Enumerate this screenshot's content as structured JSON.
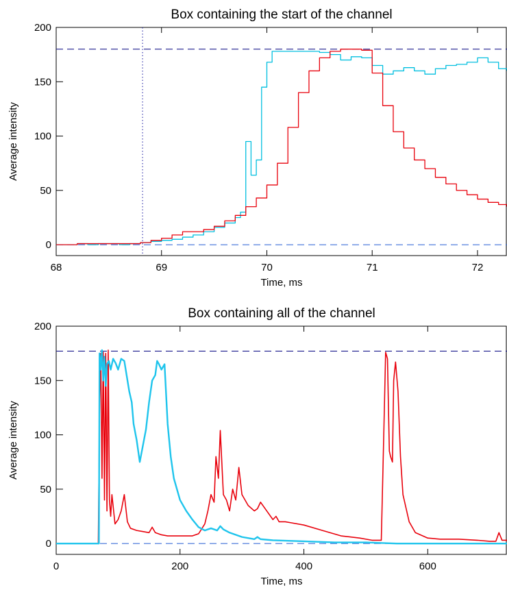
{
  "chart_data": [
    {
      "type": "line",
      "title": "Box containing the start of the channel",
      "xlabel": "Time, ms",
      "ylabel": "Average intensity",
      "xlim": [
        68,
        72.28
      ],
      "ylim": [
        -10,
        200
      ],
      "xticks": [
        68,
        69,
        70,
        71,
        72
      ],
      "xtick_labels": [
        "68",
        "69",
        "70",
        "71",
        "72"
      ],
      "yticks": [
        0,
        50,
        100,
        150,
        200
      ],
      "ytick_labels": [
        "0",
        "50",
        "100",
        "150",
        "200"
      ],
      "step": true,
      "reference_lines": [
        {
          "name": "saturation-line",
          "orientation": "h",
          "value": 180,
          "color": "#1a1a8c",
          "style": "dashed"
        },
        {
          "name": "zero-line",
          "orientation": "h",
          "value": 0,
          "color": "#3b6fd9",
          "style": "dashed"
        },
        {
          "name": "onset-line",
          "orientation": "v",
          "value": 68.82,
          "color": "#2a2aa8",
          "style": "dotted"
        }
      ],
      "series": [
        {
          "color": "#00bfdf",
          "x": [
            68.0,
            68.1,
            68.2,
            68.3,
            68.4,
            68.5,
            68.6,
            68.7,
            68.8,
            68.9,
            69.0,
            69.1,
            69.2,
            69.3,
            69.4,
            69.5,
            69.6,
            69.7,
            69.75,
            69.8,
            69.85,
            69.9,
            69.95,
            70.0,
            70.05,
            70.1,
            70.3,
            70.5,
            70.6,
            70.7,
            70.8,
            70.9,
            71.0,
            71.1,
            71.2,
            71.3,
            71.4,
            71.5,
            71.6,
            71.7,
            71.8,
            71.9,
            72.0,
            72.1,
            72.2,
            72.28
          ],
          "y": [
            0,
            0,
            1,
            0,
            1,
            1,
            0,
            1,
            2,
            3,
            4,
            5,
            7,
            9,
            12,
            16,
            20,
            25,
            30,
            95,
            64,
            78,
            145,
            168,
            178,
            178,
            178,
            177,
            175,
            170,
            173,
            172,
            165,
            157,
            160,
            163,
            160,
            157,
            162,
            165,
            166,
            168,
            172,
            168,
            162,
            160
          ]
        },
        {
          "color": "#e8000b",
          "x": [
            68.0,
            68.2,
            68.4,
            68.6,
            68.8,
            68.9,
            69.0,
            69.1,
            69.2,
            69.3,
            69.4,
            69.5,
            69.6,
            69.7,
            69.8,
            69.9,
            70.0,
            70.1,
            70.2,
            70.3,
            70.4,
            70.5,
            70.6,
            70.7,
            70.8,
            70.9,
            71.0,
            71.1,
            71.2,
            71.3,
            71.4,
            71.5,
            71.6,
            71.7,
            71.8,
            71.9,
            72.0,
            72.1,
            72.2,
            72.28
          ],
          "y": [
            0,
            1,
            1,
            1,
            2,
            4,
            6,
            9,
            12,
            12,
            14,
            17,
            22,
            27,
            35,
            43,
            55,
            75,
            108,
            140,
            160,
            172,
            178,
            180,
            180,
            179,
            158,
            128,
            104,
            89,
            78,
            70,
            62,
            56,
            50,
            46,
            42,
            39,
            37,
            35
          ]
        }
      ]
    },
    {
      "type": "line",
      "title": "Box containing all of the channel",
      "xlabel": "Time, ms",
      "ylabel": "Average intensity",
      "xlim": [
        0,
        728
      ],
      "ylim": [
        -10,
        200
      ],
      "xticks": [
        0,
        200,
        400,
        600
      ],
      "xtick_labels": [
        "0",
        "200",
        "400",
        "600"
      ],
      "yticks": [
        0,
        50,
        100,
        150,
        200
      ],
      "ytick_labels": [
        "0",
        "50",
        "100",
        "150",
        "200"
      ],
      "step": false,
      "reference_lines": [
        {
          "name": "saturation-line",
          "orientation": "h",
          "value": 177,
          "color": "#1a1a8c",
          "style": "dashed"
        },
        {
          "name": "zero-line",
          "orientation": "h",
          "value": 0,
          "color": "#3b6fd9",
          "style": "dashed"
        }
      ],
      "series": [
        {
          "color": "#e8000b",
          "x": [
            0,
            60,
            68,
            70,
            72,
            74,
            76,
            78,
            80,
            82,
            84,
            86,
            88,
            90,
            95,
            100,
            105,
            110,
            115,
            120,
            130,
            140,
            150,
            155,
            160,
            170,
            180,
            200,
            220,
            230,
            240,
            245,
            250,
            255,
            258,
            262,
            265,
            270,
            275,
            280,
            285,
            290,
            295,
            300,
            310,
            320,
            325,
            330,
            340,
            350,
            355,
            360,
            370,
            380,
            400,
            430,
            460,
            490,
            510,
            525,
            529,
            532,
            535,
            538,
            540,
            543,
            545,
            548,
            552,
            556,
            560,
            570,
            580,
            600,
            620,
            650,
            680,
            700,
            710,
            715,
            720,
            728
          ],
          "y": [
            0,
            0,
            0,
            120,
            175,
            60,
            176,
            40,
            175,
            30,
            178,
            40,
            25,
            45,
            18,
            22,
            30,
            45,
            20,
            14,
            12,
            11,
            10,
            15,
            10,
            8,
            7,
            7,
            7,
            9,
            18,
            30,
            45,
            38,
            80,
            60,
            104,
            45,
            40,
            30,
            50,
            40,
            70,
            45,
            35,
            30,
            32,
            38,
            30,
            22,
            25,
            20,
            20,
            19,
            17,
            12,
            7,
            5,
            3,
            3,
            100,
            176,
            170,
            85,
            80,
            75,
            150,
            167,
            140,
            80,
            45,
            20,
            10,
            5,
            4,
            4,
            3,
            2,
            2,
            10,
            3,
            3
          ]
        },
        {
          "color": "#1ec4ec",
          "x": [
            0,
            50,
            66,
            69,
            70,
            72,
            74,
            76,
            78,
            80,
            82,
            85,
            88,
            92,
            96,
            100,
            105,
            110,
            118,
            122,
            125,
            130,
            135,
            140,
            145,
            150,
            155,
            160,
            163,
            166,
            170,
            175,
            180,
            185,
            190,
            200,
            210,
            220,
            230,
            240,
            250,
            260,
            265,
            270,
            280,
            300,
            320,
            325,
            330,
            350,
            400,
            450,
            500,
            550,
            600,
            650,
            700,
            728
          ],
          "y": [
            0,
            0,
            0,
            0,
            175,
            160,
            178,
            150,
            172,
            145,
            165,
            168,
            160,
            170,
            166,
            160,
            170,
            168,
            140,
            130,
            110,
            95,
            75,
            90,
            105,
            130,
            150,
            155,
            168,
            165,
            160,
            165,
            110,
            80,
            60,
            40,
            30,
            22,
            15,
            12,
            14,
            12,
            16,
            13,
            10,
            6,
            4,
            6,
            4,
            3,
            2,
            1,
            1,
            0,
            0,
            0,
            0,
            0
          ]
        }
      ]
    }
  ]
}
